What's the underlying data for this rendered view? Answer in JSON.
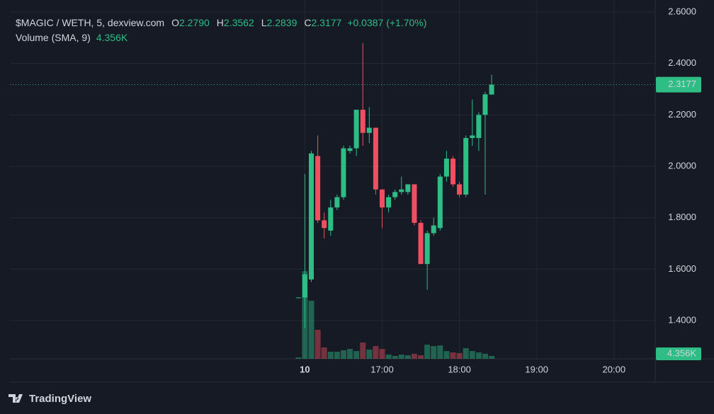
{
  "brand": "TradingView",
  "chart_data": {
    "type": "candlestick",
    "legend": {
      "title": "$MAGIC / WETH, 5, dexview.com",
      "fields": [
        {
          "key": "O",
          "text": "2.2790"
        },
        {
          "key": "H",
          "text": "2.3562"
        },
        {
          "key": "L",
          "text": "2.2839"
        },
        {
          "key": "C",
          "text": "2.3177"
        }
      ],
      "change": "+0.0387 (+1.70%)"
    },
    "up_color": "#2dbd85",
    "down_color": "#ef4f60",
    "x": [
      -5,
      0,
      5,
      10,
      15,
      20,
      25,
      30,
      35,
      40,
      45,
      50,
      55,
      60,
      65,
      70,
      75,
      80,
      85,
      90,
      95,
      100,
      105,
      110,
      115,
      120,
      125,
      130,
      135,
      140,
      145
    ],
    "open": [
      1.49,
      1.49,
      1.56,
      2.04,
      1.79,
      1.75,
      1.84,
      1.88,
      2.06,
      2.07,
      2.22,
      2.13,
      2.15,
      1.91,
      1.84,
      1.88,
      1.9,
      1.9,
      1.93,
      1.78,
      1.62,
      1.74,
      1.76,
      1.96,
      2.03,
      1.93,
      1.89,
      2.11,
      2.11,
      2.2,
      2.279
    ],
    "high": [
      1.49,
      1.97,
      2.06,
      2.12,
      1.82,
      1.87,
      1.89,
      2.08,
      2.08,
      2.22,
      2.48,
      2.23,
      2.15,
      1.91,
      1.89,
      1.91,
      1.96,
      1.93,
      1.93,
      1.79,
      1.75,
      1.8,
      1.97,
      2.06,
      2.04,
      1.94,
      2.12,
      2.26,
      2.21,
      2.29,
      2.3562
    ],
    "low": [
      1.49,
      1.37,
      1.55,
      1.78,
      1.72,
      1.73,
      1.83,
      1.87,
      2.05,
      2.04,
      2.08,
      2.09,
      1.89,
      1.76,
      1.82,
      1.87,
      1.89,
      1.89,
      1.77,
      1.62,
      1.52,
      1.73,
      1.75,
      1.94,
      1.92,
      1.88,
      1.88,
      2.08,
      2.06,
      1.89,
      2.2839
    ],
    "close": [
      1.49,
      1.58,
      2.05,
      1.79,
      1.76,
      1.84,
      1.88,
      2.07,
      2.07,
      2.22,
      2.13,
      2.15,
      1.91,
      1.84,
      1.88,
      1.9,
      1.91,
      1.93,
      1.78,
      1.62,
      1.74,
      1.77,
      1.96,
      2.03,
      1.93,
      1.89,
      2.11,
      2.12,
      2.2,
      2.28,
      2.3177
    ],
    "volume": {
      "name": "Volume (SMA, 9)",
      "values": [
        1200,
        77000,
        51000,
        25500,
        10000,
        6200,
        6200,
        7500,
        8700,
        6800,
        14300,
        8100,
        11200,
        8700,
        3700,
        2500,
        3700,
        3100,
        4400,
        3100,
        12400,
        11200,
        11800,
        6800,
        5600,
        5000,
        9300,
        6800,
        5600,
        4400,
        2500
      ],
      "sma": {
        "value": 4356,
        "label": "4.356K"
      },
      "vlim": [
        0,
        309000
      ]
    },
    "last_price": {
      "value": 2.3177,
      "label": "2.3177"
    },
    "xlim": [
      -229,
      272
    ],
    "xticks": [
      {
        "value": 0,
        "label": "10"
      },
      {
        "value": 60,
        "label": "17:00"
      },
      {
        "value": 120,
        "label": "18:00"
      },
      {
        "value": 180,
        "label": "19:00"
      },
      {
        "value": 240,
        "label": "20:00"
      }
    ],
    "ylim": [
      1.2514,
      2.6193
    ],
    "yticks": [
      {
        "value": 1.4,
        "label": "1.4000"
      },
      {
        "value": 1.6,
        "label": "1.6000"
      },
      {
        "value": 1.8,
        "label": "1.8000"
      },
      {
        "value": 2.0,
        "label": "2.0000"
      },
      {
        "value": 2.2,
        "label": "2.2000"
      },
      {
        "value": 2.4,
        "label": "2.4000"
      },
      {
        "value": 2.6,
        "label": "2.6000"
      }
    ],
    "grid": true
  }
}
